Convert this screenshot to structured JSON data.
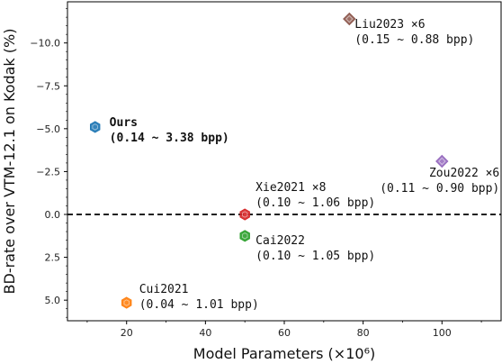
{
  "chart_data": {
    "type": "scatter",
    "xlabel": "Model Parameters (×10⁶)",
    "ylabel": "BD-rate over VTM-12.1 on Kodak (%)",
    "xlim": [
      5,
      115
    ],
    "ylim": [
      6.2,
      -12.4
    ],
    "y_inverted": true,
    "x_ticks": [
      20,
      40,
      60,
      80,
      100
    ],
    "y_ticks": [
      -10.0,
      -7.5,
      -5.0,
      -2.5,
      0.0,
      2.5,
      5.0
    ],
    "y_tick_labels": [
      "−10.0",
      "−7.5",
      "−5.0",
      "−2.5",
      "0.0",
      "2.5",
      "5.0"
    ],
    "grid": false,
    "reference_line": {
      "y": 0.0,
      "style": "dashed",
      "color": "#000000"
    },
    "points": [
      {
        "name": "Ours",
        "x": 12,
        "y": -5.1,
        "color": "#1f77b4",
        "bold": true,
        "label_line1": "Ours",
        "label_line2": "(0.14 ~ 3.38 bpp)"
      },
      {
        "name": "Liu2023",
        "x": 76.5,
        "y": -11.4,
        "color": "#8c564b",
        "bold": false,
        "label_line1": "Liu2023 ×6",
        "label_line2": "(0.15 ~ 0.88 bpp)"
      },
      {
        "name": "Zou2022",
        "x": 100,
        "y": -3.1,
        "color": "#9467bd",
        "bold": false,
        "label_line1": "Zou2022 ×6",
        "label_line2": "(0.11 ~ 0.90 bpp)"
      },
      {
        "name": "Xie2021",
        "x": 50,
        "y": 0.0,
        "color": "#d62728",
        "bold": false,
        "label_line1": "Xie2021 ×8",
        "label_line2": "(0.10 ~ 1.06 bpp)"
      },
      {
        "name": "Cai2022",
        "x": 50,
        "y": 1.25,
        "color": "#2ca02c",
        "bold": false,
        "label_line1": "Cai2022",
        "label_line2": "(0.10 ~ 1.05 bpp)"
      },
      {
        "name": "Cui2021",
        "x": 20,
        "y": 5.15,
        "color": "#ff7f0e",
        "bold": false,
        "label_line1": "Cui2021",
        "label_line2": "(0.04 ~ 1.01 bpp)"
      }
    ]
  }
}
